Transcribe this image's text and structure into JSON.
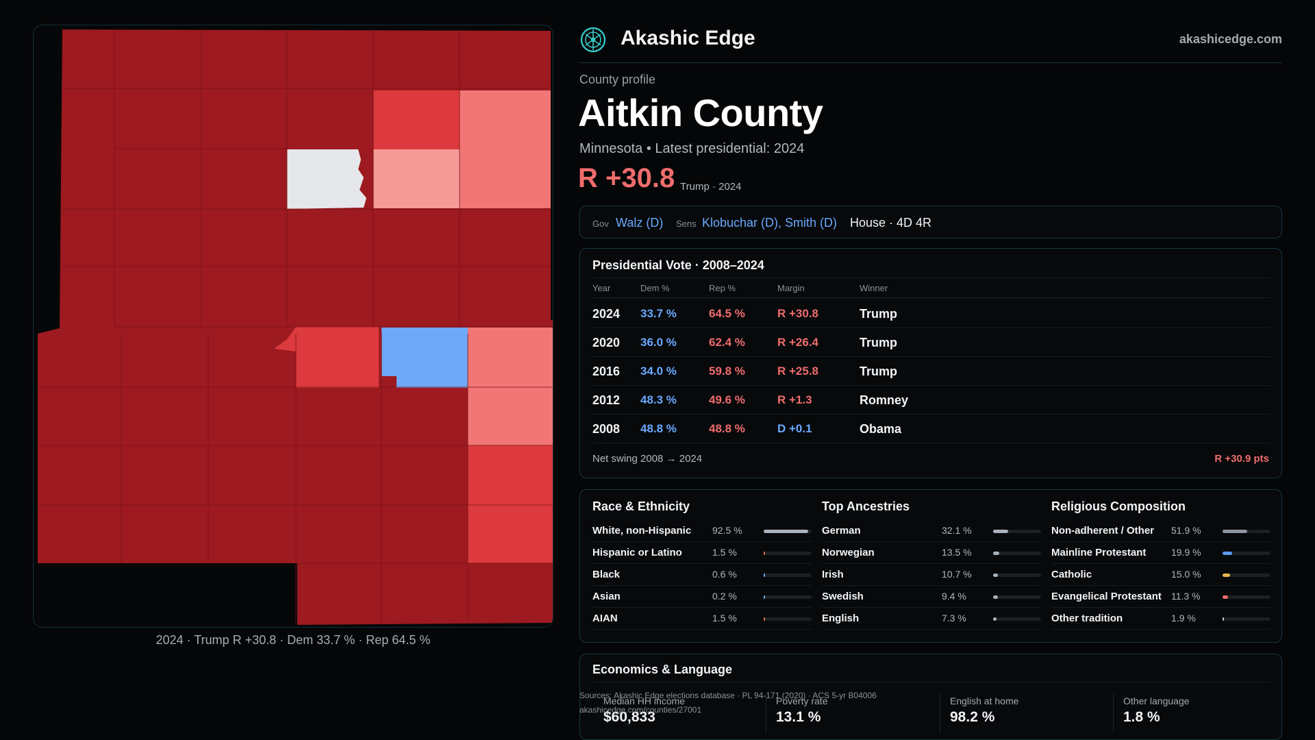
{
  "header": {
    "brand_name": "Akashic Edge",
    "site": "akashicedge.com",
    "logo_icon": "compass-globe-icon"
  },
  "profile": {
    "kicker": "County profile",
    "county": "Aitkin County",
    "subtitle": "Minnesota • Latest presidential: 2024",
    "margin": "R +30.8",
    "margin_note": "Trump · 2024"
  },
  "officials": {
    "gov_label": "Gov",
    "gov": "Walz (D)",
    "sens_label": "Sens",
    "sens": "Klobuchar (D), Smith (D)",
    "house": "House · 4D 4R"
  },
  "presidential": {
    "title": "Presidential Vote · 2008–2024",
    "columns": [
      "Year",
      "Dem %",
      "Rep %",
      "Margin",
      "Winner"
    ],
    "rows": [
      {
        "year": "2024",
        "dem": "33.7 %",
        "rep": "64.5 %",
        "margin": "R +30.8",
        "winner": "Trump",
        "party": "R"
      },
      {
        "year": "2020",
        "dem": "36.0 %",
        "rep": "62.4 %",
        "margin": "R +26.4",
        "winner": "Trump",
        "party": "R"
      },
      {
        "year": "2016",
        "dem": "34.0 %",
        "rep": "59.8 %",
        "margin": "R +25.8",
        "winner": "Trump",
        "party": "R"
      },
      {
        "year": "2012",
        "dem": "48.3 %",
        "rep": "49.6 %",
        "margin": "R +1.3",
        "winner": "Romney",
        "party": "R"
      },
      {
        "year": "2008",
        "dem": "48.8 %",
        "rep": "48.8 %",
        "margin": "D +0.1",
        "winner": "Obama",
        "party": "D"
      }
    ],
    "swing_label": "Net swing 2008 → 2024",
    "swing_value": "R +30.9 pts"
  },
  "demographics": [
    {
      "title": "Race & Ethnicity",
      "items": [
        {
          "label": "White, non-Hispanic",
          "value": "92.5 %",
          "pct": 92.5,
          "color": "#a9b2bd"
        },
        {
          "label": "Hispanic or Latino",
          "value": "1.5 %",
          "pct": 1.5,
          "color": "#e0704a"
        },
        {
          "label": "Black",
          "value": "0.6 %",
          "pct": 0.6,
          "color": "#6aa9ff"
        },
        {
          "label": "Asian",
          "value": "0.2 %",
          "pct": 0.2,
          "color": "#6aa9ff"
        },
        {
          "label": "AIAN",
          "value": "1.5 %",
          "pct": 1.5,
          "color": "#e0704a"
        }
      ]
    },
    {
      "title": "Top Ancestries",
      "items": [
        {
          "label": "German",
          "value": "32.1 %",
          "pct": 32.1,
          "color": "#a9b2bd"
        },
        {
          "label": "Norwegian",
          "value": "13.5 %",
          "pct": 13.5,
          "color": "#a9b2bd"
        },
        {
          "label": "Irish",
          "value": "10.7 %",
          "pct": 10.7,
          "color": "#a9b2bd"
        },
        {
          "label": "Swedish",
          "value": "9.4 %",
          "pct": 9.4,
          "color": "#a9b2bd"
        },
        {
          "label": "English",
          "value": "7.3 %",
          "pct": 7.3,
          "color": "#a9b2bd"
        }
      ]
    },
    {
      "title": "Religious Composition",
      "items": [
        {
          "label": "Non-adherent / Other",
          "value": "51.9 %",
          "pct": 51.9,
          "color": "#8e96a0"
        },
        {
          "label": "Mainline Protestant",
          "value": "19.9 %",
          "pct": 19.9,
          "color": "#5b9bf2"
        },
        {
          "label": "Catholic",
          "value": "15.0 %",
          "pct": 15.0,
          "color": "#e8b84a"
        },
        {
          "label": "Evangelical Protestant",
          "value": "11.3 %",
          "pct": 11.3,
          "color": "#f06d6d"
        },
        {
          "label": "Other tradition",
          "value": "1.9 %",
          "pct": 1.9,
          "color": "#c9ccd1"
        }
      ]
    }
  ],
  "economics": {
    "title": "Economics & Language",
    "stats": [
      {
        "label": "Median HH income",
        "value": "$60,833"
      },
      {
        "label": "Poverty rate",
        "value": "13.1 %"
      },
      {
        "label": "English at home",
        "value": "98.2 %"
      },
      {
        "label": "Other language",
        "value": "1.8 %"
      }
    ]
  },
  "sources": {
    "line1": "Sources: Akashic Edge elections database · PL 94-171 (2020) · ACS 5-yr B04006",
    "line2": "akashicedge.com/counties/27001"
  },
  "map": {
    "caption": "2024 · Trump R +30.8 · Dem 33.7 % · Rep 64.5 %",
    "colors": {
      "safe_r": "#9c1a20",
      "likely_r": "#dc3a3e",
      "lean_r": "#f27676",
      "tilt_r": "#f59a96",
      "tie": "#e6e7ea",
      "lean_d": "#6ea8f7",
      "background": "#060708"
    }
  }
}
